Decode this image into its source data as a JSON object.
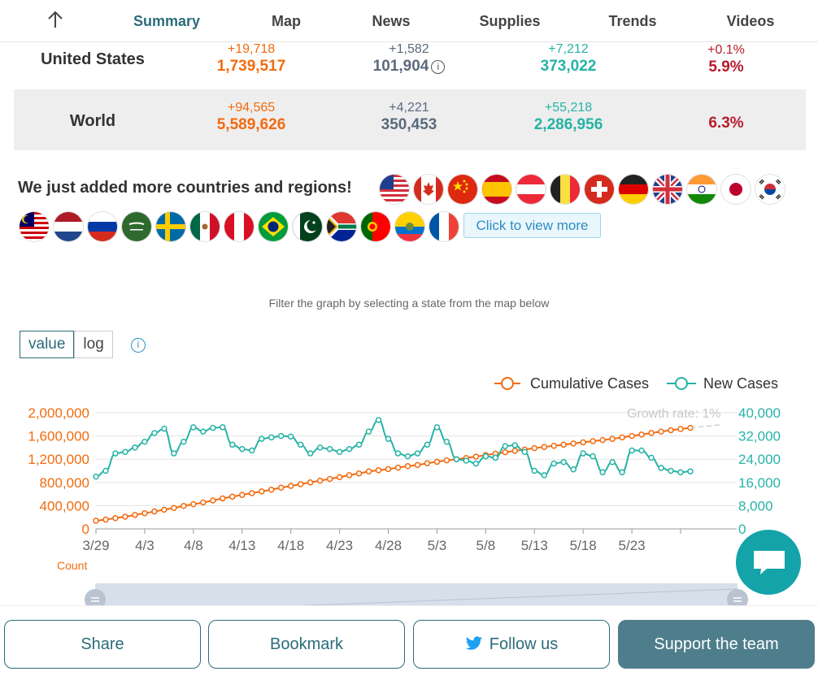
{
  "nav": {
    "tabs": [
      "Summary",
      "Map",
      "News",
      "Supplies",
      "Trends",
      "Videos"
    ],
    "active": "Summary"
  },
  "stats": {
    "us": {
      "name": "United States",
      "cases_delta": "+19,718",
      "cases_total": "1,739,517",
      "deaths_delta": "+1,582",
      "deaths_total": "101,904",
      "recovered_delta": "+7,212",
      "recovered_total": "373,022",
      "rate_delta": "+0.1%",
      "rate_total": "5.9%"
    },
    "world": {
      "name": "World",
      "cases_delta": "+94,565",
      "cases_total": "5,589,626",
      "deaths_delta": "+4,221",
      "deaths_total": "350,453",
      "recovered_delta": "+55,218",
      "recovered_total": "2,286,956",
      "rate_total": "6.3%"
    }
  },
  "countries": {
    "heading": "We just added more countries and regions!",
    "view_more": "Click to view more"
  },
  "filter_hint": "Filter the graph by selecting a state from the map below",
  "scale_toggle": {
    "value_label": "value",
    "log_label": "log",
    "selected": "value"
  },
  "chart_data": {
    "type": "line",
    "x_tick_labels": [
      "3/29",
      "4/3",
      "4/8",
      "4/13",
      "4/18",
      "4/23",
      "4/28",
      "5/3",
      "5/8",
      "5/13",
      "5/18",
      "5/23"
    ],
    "x_start": "3/29",
    "x_end": "5/27",
    "y_left": {
      "label": "Count",
      "ticks": [
        "0",
        "400,000",
        "800,000",
        "1,200,000",
        "1,600,000",
        "2,000,000"
      ],
      "range": [
        0,
        2000000
      ],
      "color": "#f26b0f"
    },
    "y_right": {
      "ticks": [
        "0",
        "8,000",
        "16,000",
        "24,000",
        "32,000",
        "40,000"
      ],
      "range": [
        0,
        40000
      ],
      "color": "#26b3a6"
    },
    "legend": [
      "Cumulative Cases",
      "New Cases"
    ],
    "legend_position": "top-right",
    "annotation": "Growth rate: 1%",
    "series": [
      {
        "name": "Cumulative Cases",
        "axis": "left",
        "color": "#f26b0f",
        "values": [
          140000,
          160000,
          185000,
          210000,
          240000,
          270000,
          300000,
          330000,
          360000,
          395000,
          425000,
          455000,
          490000,
          525000,
          555000,
          585000,
          615000,
          645000,
          675000,
          710000,
          740000,
          770000,
          800000,
          830000,
          860000,
          890000,
          925000,
          955000,
          990000,
          1010000,
          1030000,
          1055000,
          1080000,
          1100000,
          1130000,
          1155000,
          1180000,
          1200000,
          1220000,
          1245000,
          1270000,
          1295000,
          1320000,
          1345000,
          1365000,
          1390000,
          1410000,
          1430000,
          1450000,
          1470000,
          1490000,
          1510000,
          1530000,
          1550000,
          1575000,
          1600000,
          1625000,
          1650000,
          1675000,
          1700000,
          1720000,
          1739517
        ]
      },
      {
        "name": "New Cases",
        "axis": "right",
        "color": "#26b3a6",
        "values": [
          18000,
          20000,
          26000,
          26500,
          28000,
          30000,
          33000,
          34500,
          26000,
          30000,
          35000,
          33500,
          34800,
          35000,
          29000,
          27500,
          27000,
          31000,
          31500,
          32000,
          31800,
          29000,
          26000,
          28000,
          27500,
          26500,
          27500,
          29000,
          33500,
          37500,
          31000,
          26000,
          25000,
          26000,
          29000,
          35000,
          30000,
          24000,
          23500,
          22500,
          25000,
          24500,
          28500,
          28800,
          26500,
          20000,
          18500,
          22500,
          23000,
          20500,
          26000,
          25000,
          19500,
          23000,
          19500,
          27000,
          27000,
          24500,
          21000,
          20000,
          19500,
          19800
        ]
      }
    ]
  },
  "bottom": {
    "share": "Share",
    "bookmark": "Bookmark",
    "follow": "Follow us",
    "support": "Support the team"
  },
  "colors": {
    "accent": "#2b6c7a",
    "cases": "#f26b0f",
    "deaths": "#5a6a7e",
    "recovered": "#26b3a6",
    "fatality": "#b71c2c",
    "twitter": "#1da1f2",
    "chat": "#13a3a8"
  }
}
